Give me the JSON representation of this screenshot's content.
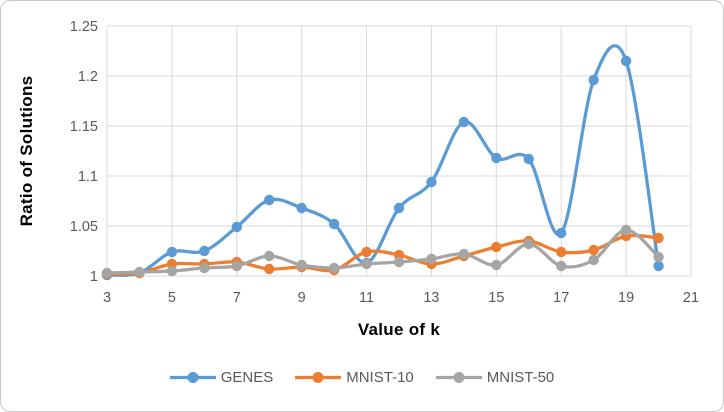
{
  "chart_data": {
    "type": "line",
    "title": "",
    "xlabel": "Value of k",
    "ylabel": "Ratio of Solutions",
    "x": [
      3,
      4,
      5,
      6,
      7,
      8,
      9,
      10,
      11,
      12,
      13,
      14,
      15,
      16,
      17,
      18,
      19,
      20
    ],
    "series": [
      {
        "name": "GENES",
        "color": "#5B9BD5",
        "values": [
          1.001,
          1.003,
          1.024,
          1.025,
          1.049,
          1.076,
          1.068,
          1.052,
          1.013,
          1.068,
          1.094,
          1.154,
          1.118,
          1.117,
          1.043,
          1.196,
          1.215,
          1.01
        ]
      },
      {
        "name": "MNIST-10",
        "color": "#ED7D31",
        "values": [
          1.002,
          1.003,
          1.012,
          1.012,
          1.014,
          1.007,
          1.009,
          1.006,
          1.024,
          1.021,
          1.012,
          1.02,
          1.029,
          1.035,
          1.024,
          1.026,
          1.04,
          1.038
        ]
      },
      {
        "name": "MNIST-50",
        "color": "#A5A5A5",
        "values": [
          1.003,
          1.004,
          1.005,
          1.008,
          1.01,
          1.02,
          1.011,
          1.008,
          1.012,
          1.014,
          1.017,
          1.022,
          1.011,
          1.032,
          1.01,
          1.016,
          1.046,
          1.019
        ]
      }
    ],
    "x_ticks": [
      3,
      5,
      7,
      9,
      11,
      13,
      15,
      17,
      19,
      21
    ],
    "y_ticks": [
      "1",
      "1.05",
      "1.1",
      "1.15",
      "1.2",
      "1.25"
    ],
    "xlim": [
      3,
      21
    ],
    "ylim": [
      1.0,
      1.25
    ],
    "grid": true,
    "smoothed": true,
    "marker": "circle",
    "legend_position": "bottom",
    "colors": {
      "gridline": "#D9D9D9",
      "tick_text": "#595959",
      "axis_title": "#000000",
      "legend_text": "#595959",
      "background": "#FFFFFF",
      "border": "#C9C9C9"
    }
  }
}
